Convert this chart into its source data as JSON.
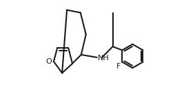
{
  "background_color": "#ffffff",
  "line_color": "#1a1a1a",
  "line_width": 1.5,
  "label_O": "O",
  "label_NH": "NH",
  "label_F": "F",
  "figsize": [
    2.83,
    1.52
  ],
  "dpi": 100
}
